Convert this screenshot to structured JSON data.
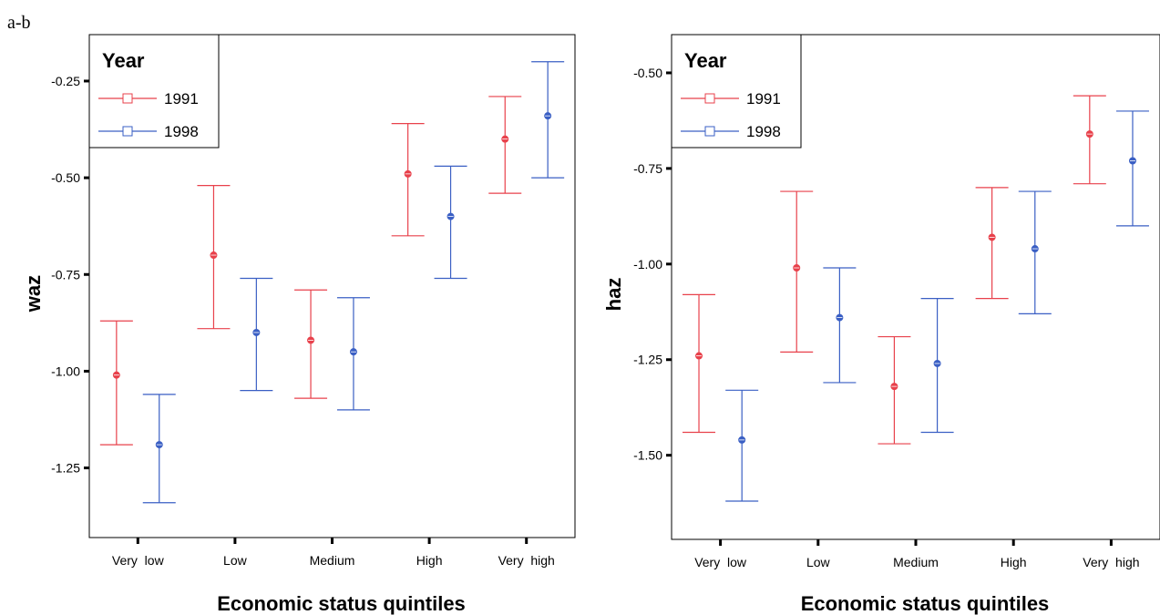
{
  "figure_label": "a-b",
  "colors": {
    "y1991": "#e8414b",
    "y1998": "#3a5fc4"
  },
  "chart_data": [
    {
      "type": "errorbar",
      "ylabel": "waz",
      "xlabel": "Economic status quintiles",
      "categories": [
        "Very  low",
        "Low",
        "Medium",
        "High",
        "Very  high"
      ],
      "ylim": [
        -1.43,
        -0.13
      ],
      "yticks": [
        -0.25,
        -0.5,
        -0.75,
        -1.0,
        -1.25
      ],
      "ytick_labels": [
        "-0.25",
        "-0.50",
        "-0.75",
        "-1.00",
        "-1.25"
      ],
      "legend": {
        "title": "Year",
        "position": "top-left"
      },
      "series": [
        {
          "name": "1991",
          "color": "#e8414b",
          "mean": [
            -1.01,
            -0.7,
            -0.92,
            -0.49,
            -0.4
          ],
          "lower": [
            -1.19,
            -0.89,
            -1.07,
            -0.65,
            -0.54
          ],
          "upper": [
            -0.87,
            -0.52,
            -0.79,
            -0.36,
            -0.29
          ]
        },
        {
          "name": "1998",
          "color": "#3a5fc4",
          "mean": [
            -1.19,
            -0.9,
            -0.95,
            -0.6,
            -0.34
          ],
          "lower": [
            -1.34,
            -1.05,
            -1.1,
            -0.76,
            -0.5
          ],
          "upper": [
            -1.06,
            -0.76,
            -0.81,
            -0.47,
            -0.2
          ]
        }
      ]
    },
    {
      "type": "errorbar",
      "ylabel": "haz",
      "xlabel": "Economic status quintiles",
      "categories": [
        "Very  low",
        "Low",
        "Medium",
        "High",
        "Very  high"
      ],
      "ylim": [
        -1.72,
        -0.4
      ],
      "yticks": [
        -0.5,
        -0.75,
        -1.0,
        -1.25,
        -1.5
      ],
      "ytick_labels": [
        "-0.50",
        "-0.75",
        "-1.00",
        "-1.25",
        "-1.50"
      ],
      "legend": {
        "title": "Year",
        "position": "top-left"
      },
      "series": [
        {
          "name": "1991",
          "color": "#e8414b",
          "mean": [
            -1.24,
            -1.01,
            -1.32,
            -0.93,
            -0.66
          ],
          "lower": [
            -1.44,
            -1.23,
            -1.47,
            -1.09,
            -0.79
          ],
          "upper": [
            -1.08,
            -0.81,
            -1.19,
            -0.8,
            -0.56
          ]
        },
        {
          "name": "1998",
          "color": "#3a5fc4",
          "mean": [
            -1.46,
            -1.14,
            -1.26,
            -0.96,
            -0.73
          ],
          "lower": [
            -1.62,
            -1.31,
            -1.44,
            -1.13,
            -0.9
          ],
          "upper": [
            -1.33,
            -1.01,
            -1.09,
            -0.81,
            -0.6
          ]
        }
      ]
    }
  ]
}
